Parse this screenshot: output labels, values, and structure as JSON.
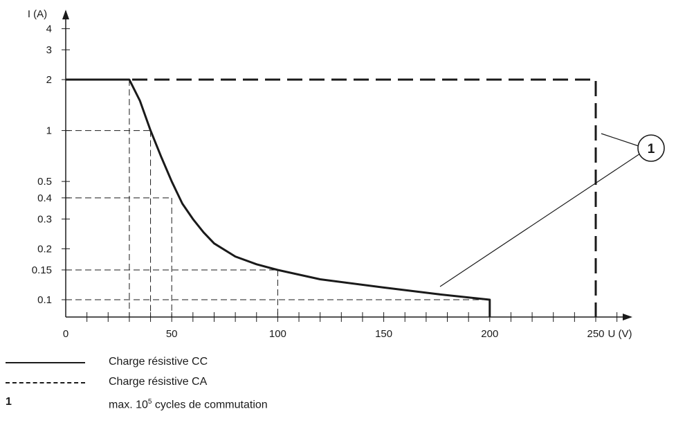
{
  "chart_data": {
    "type": "line",
    "x_axis": {
      "label": "U (V)",
      "ticks": [
        0,
        50,
        100,
        150,
        200,
        250
      ],
      "minor_step": 10,
      "range": [
        0,
        270
      ]
    },
    "y_axis": {
      "label": "I (A)",
      "scale": "log",
      "ticks": [
        "0.1",
        "0.15",
        "0.2",
        "0.3",
        "0.4",
        "0.5",
        "1",
        "2",
        "3",
        "4"
      ],
      "tick_values": [
        0.1,
        0.15,
        0.2,
        0.3,
        0.4,
        0.5,
        1,
        2,
        3,
        4
      ],
      "range": [
        0.075,
        4.6
      ]
    },
    "series": [
      {
        "name": "Charge résistive CC",
        "style": "solid",
        "points": [
          [
            0,
            2
          ],
          [
            30,
            2
          ],
          [
            35,
            1.5
          ],
          [
            40,
            1
          ],
          [
            45,
            0.7
          ],
          [
            50,
            0.5
          ],
          [
            55,
            0.37
          ],
          [
            60,
            0.3
          ],
          [
            65,
            0.25
          ],
          [
            70,
            0.215
          ],
          [
            80,
            0.18
          ],
          [
            90,
            0.162
          ],
          [
            100,
            0.15
          ],
          [
            120,
            0.132
          ],
          [
            150,
            0.118
          ],
          [
            175,
            0.108
          ],
          [
            200,
            0.1
          ],
          [
            200,
            0.0745
          ]
        ]
      },
      {
        "name": "Charge résistive CA",
        "style": "dashed",
        "points": [
          [
            0,
            2
          ],
          [
            250,
            2
          ],
          [
            250,
            0.0745
          ]
        ]
      }
    ],
    "reference_lines": [
      {
        "x": 30,
        "y": 2
      },
      {
        "x": 40,
        "y": 1
      },
      {
        "x": 50,
        "y": 0.4
      },
      {
        "x": 100,
        "y": 0.15
      },
      {
        "x": 200,
        "y": 0.1
      }
    ],
    "annotations": [
      {
        "label": "1",
        "targets": [
          "Charge résistive CA",
          "Charge résistive CC"
        ]
      }
    ]
  },
  "legend": {
    "items": [
      {
        "style": "solid",
        "text": "Charge résistive CC"
      },
      {
        "style": "dashed",
        "text": "Charge résistive CA"
      }
    ],
    "note": {
      "key": "1",
      "text_before": "max. 10",
      "sup": "5",
      "text_after": " cycles de commutation"
    }
  },
  "colors": {
    "line": "#1a1a1a",
    "background": "#ffffff"
  }
}
